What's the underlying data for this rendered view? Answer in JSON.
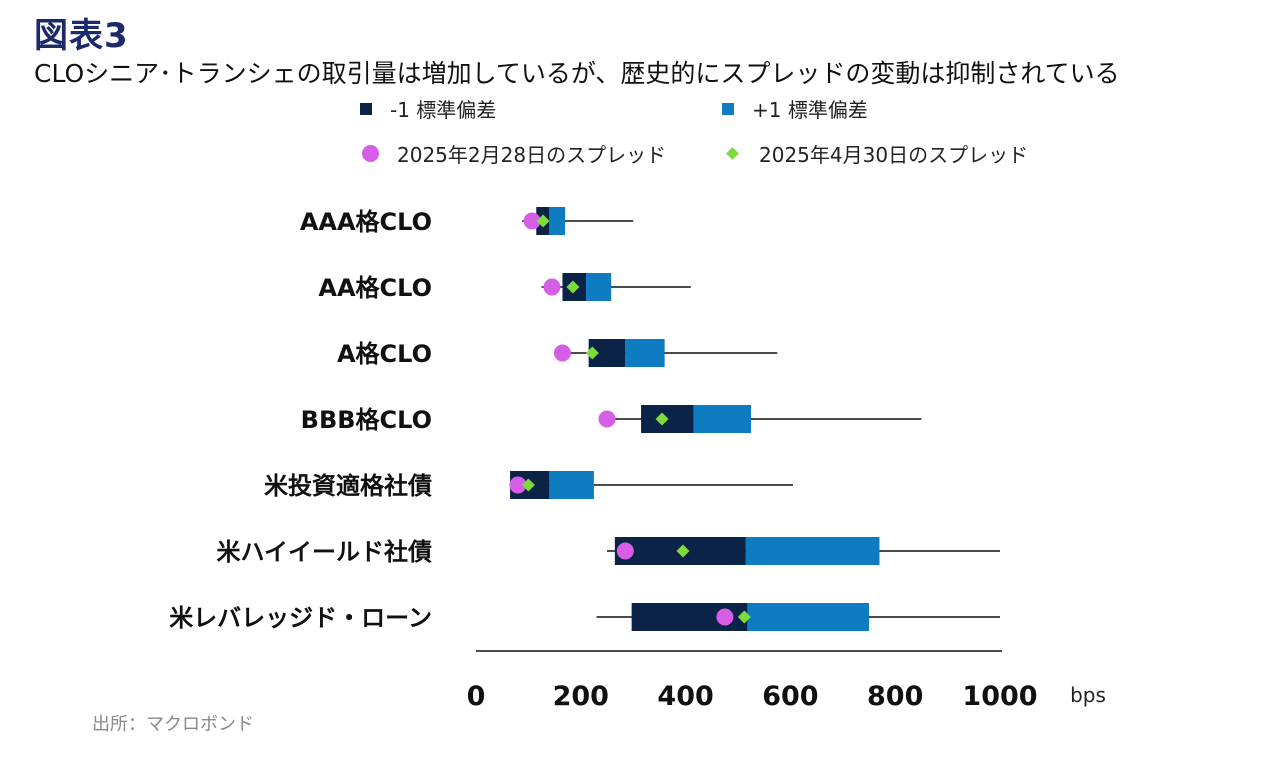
{
  "figure": {
    "label": "図表3",
    "subtitle": "CLOシニア･トランシェの取引量は増加しているが、歴史的にスプレッドの変動は抑制されている",
    "source": "出所：マクロボンド"
  },
  "colors": {
    "minus1": "#0b2347",
    "plus1": "#0f7cc2",
    "feb": "#d65ee6",
    "apr": "#7ddc3c",
    "whisker": "#111111",
    "title": "#1b2a6b"
  },
  "chart_data": {
    "type": "box",
    "title": "CLOシニア･トランシェの取引量は増加しているが、歴史的にスプレッドの変動は抑制されている",
    "xlabel": "bps",
    "xlim": [
      0,
      1000
    ],
    "x_ticks": [
      0,
      200,
      400,
      600,
      800,
      1000
    ],
    "legend": [
      {
        "key": "minus1",
        "label": "-1 標準偏差",
        "marker": "square"
      },
      {
        "key": "plus1",
        "label": "+1 標準偏差",
        "marker": "square"
      },
      {
        "key": "feb",
        "label": "2025年2月28日のスプレッド",
        "marker": "circle"
      },
      {
        "key": "apr",
        "label": "2025年4月30日のスプレッド",
        "marker": "diamond"
      }
    ],
    "categories": [
      "AAA格CLO",
      "AA格CLO",
      "A格CLO",
      "BBB格CLO",
      "米投資適格社債",
      "米ハイイールド社債",
      "米レバレッジド・ローン"
    ],
    "series": [
      {
        "category": "AAA格CLO",
        "whisker_low": 88,
        "minus1_low": 115,
        "mean": 140,
        "plus1_high": 170,
        "whisker_high": 300,
        "feb_2025_02_28": 107,
        "apr_2025_04_30": 128
      },
      {
        "category": "AA格CLO",
        "whisker_low": 125,
        "minus1_low": 165,
        "mean": 210,
        "plus1_high": 258,
        "whisker_high": 410,
        "feb_2025_02_28": 145,
        "apr_2025_04_30": 185
      },
      {
        "category": "A格CLO",
        "whisker_low": 165,
        "minus1_low": 215,
        "mean": 285,
        "plus1_high": 360,
        "whisker_high": 575,
        "feb_2025_02_28": 165,
        "apr_2025_04_30": 222
      },
      {
        "category": "BBB格CLO",
        "whisker_low": 250,
        "minus1_low": 315,
        "mean": 415,
        "plus1_high": 525,
        "whisker_high": 850,
        "feb_2025_02_28": 250,
        "apr_2025_04_30": 355
      },
      {
        "category": "米投資適格社債",
        "whisker_low": 65,
        "minus1_low": 65,
        "mean": 140,
        "plus1_high": 225,
        "whisker_high": 605,
        "feb_2025_02_28": 80,
        "apr_2025_04_30": 100
      },
      {
        "category": "米ハイイールド社債",
        "whisker_low": 250,
        "minus1_low": 265,
        "mean": 515,
        "plus1_high": 770,
        "whisker_high": 1000,
        "feb_2025_02_28": 285,
        "apr_2025_04_30": 395
      },
      {
        "category": "米レバレッジド・ローン",
        "whisker_low": 230,
        "minus1_low": 297,
        "mean": 518,
        "plus1_high": 750,
        "whisker_high": 1000,
        "feb_2025_02_28": 475,
        "apr_2025_04_30": 512
      }
    ]
  }
}
